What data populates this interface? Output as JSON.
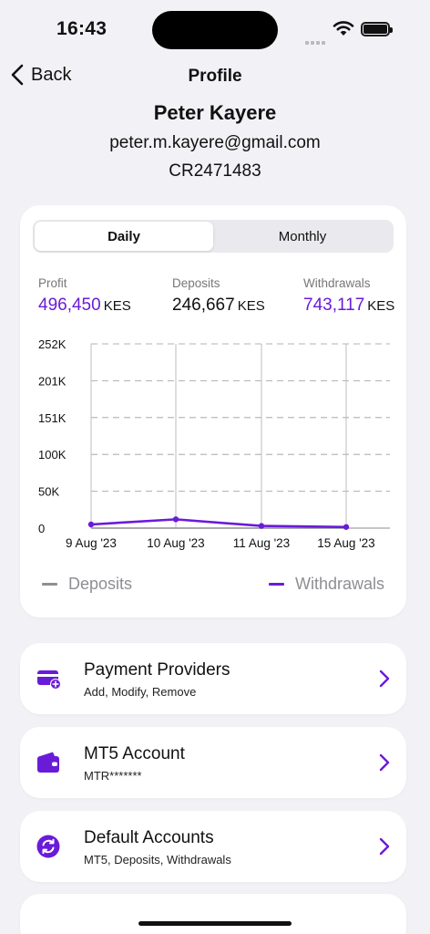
{
  "status": {
    "time": "16:43"
  },
  "nav": {
    "back_label": "Back",
    "title": "Profile"
  },
  "profile": {
    "name": "Peter Kayere",
    "email": "peter.m.kayere@gmail.com",
    "account_id": "CR2471483"
  },
  "tabs": [
    {
      "label": "Daily",
      "selected": true
    },
    {
      "label": "Monthly",
      "selected": false
    }
  ],
  "metrics": {
    "profit": {
      "label": "Profit",
      "value": "496,450",
      "unit": "KES"
    },
    "deposits": {
      "label": "Deposits",
      "value": "246,667",
      "unit": "KES"
    },
    "withdrawals": {
      "label": "Withdrawals",
      "value": "743,117",
      "unit": "KES"
    }
  },
  "chart_data": {
    "type": "line",
    "x": [
      "9 Aug '23",
      "10 Aug '23",
      "11 Aug '23",
      "15 Aug '23"
    ],
    "y_ticks": [
      "0",
      "50K",
      "100K",
      "151K",
      "201K",
      "252K"
    ],
    "ylim": [
      0,
      252000
    ],
    "series": [
      {
        "name": "Deposits",
        "color": "#8e8e93",
        "values": [
          0,
          0,
          0,
          0
        ]
      },
      {
        "name": "Withdrawals",
        "color": "#6a1bd8",
        "values": [
          5000,
          12000,
          3000,
          1500
        ]
      }
    ],
    "grid": true,
    "legend": "bottom"
  },
  "colors": {
    "accent": "#6a1bd8",
    "background": "#f2f2f6"
  },
  "menu": [
    {
      "title": "Payment Providers",
      "subtitle": "Add, Modify, Remove",
      "icon": "card-add-icon"
    },
    {
      "title": "MT5 Account",
      "subtitle": "MTR*******",
      "icon": "wallet-icon"
    },
    {
      "title": "Default Accounts",
      "subtitle": "MT5, Deposits, Withdrawals",
      "icon": "sync-icon"
    }
  ]
}
